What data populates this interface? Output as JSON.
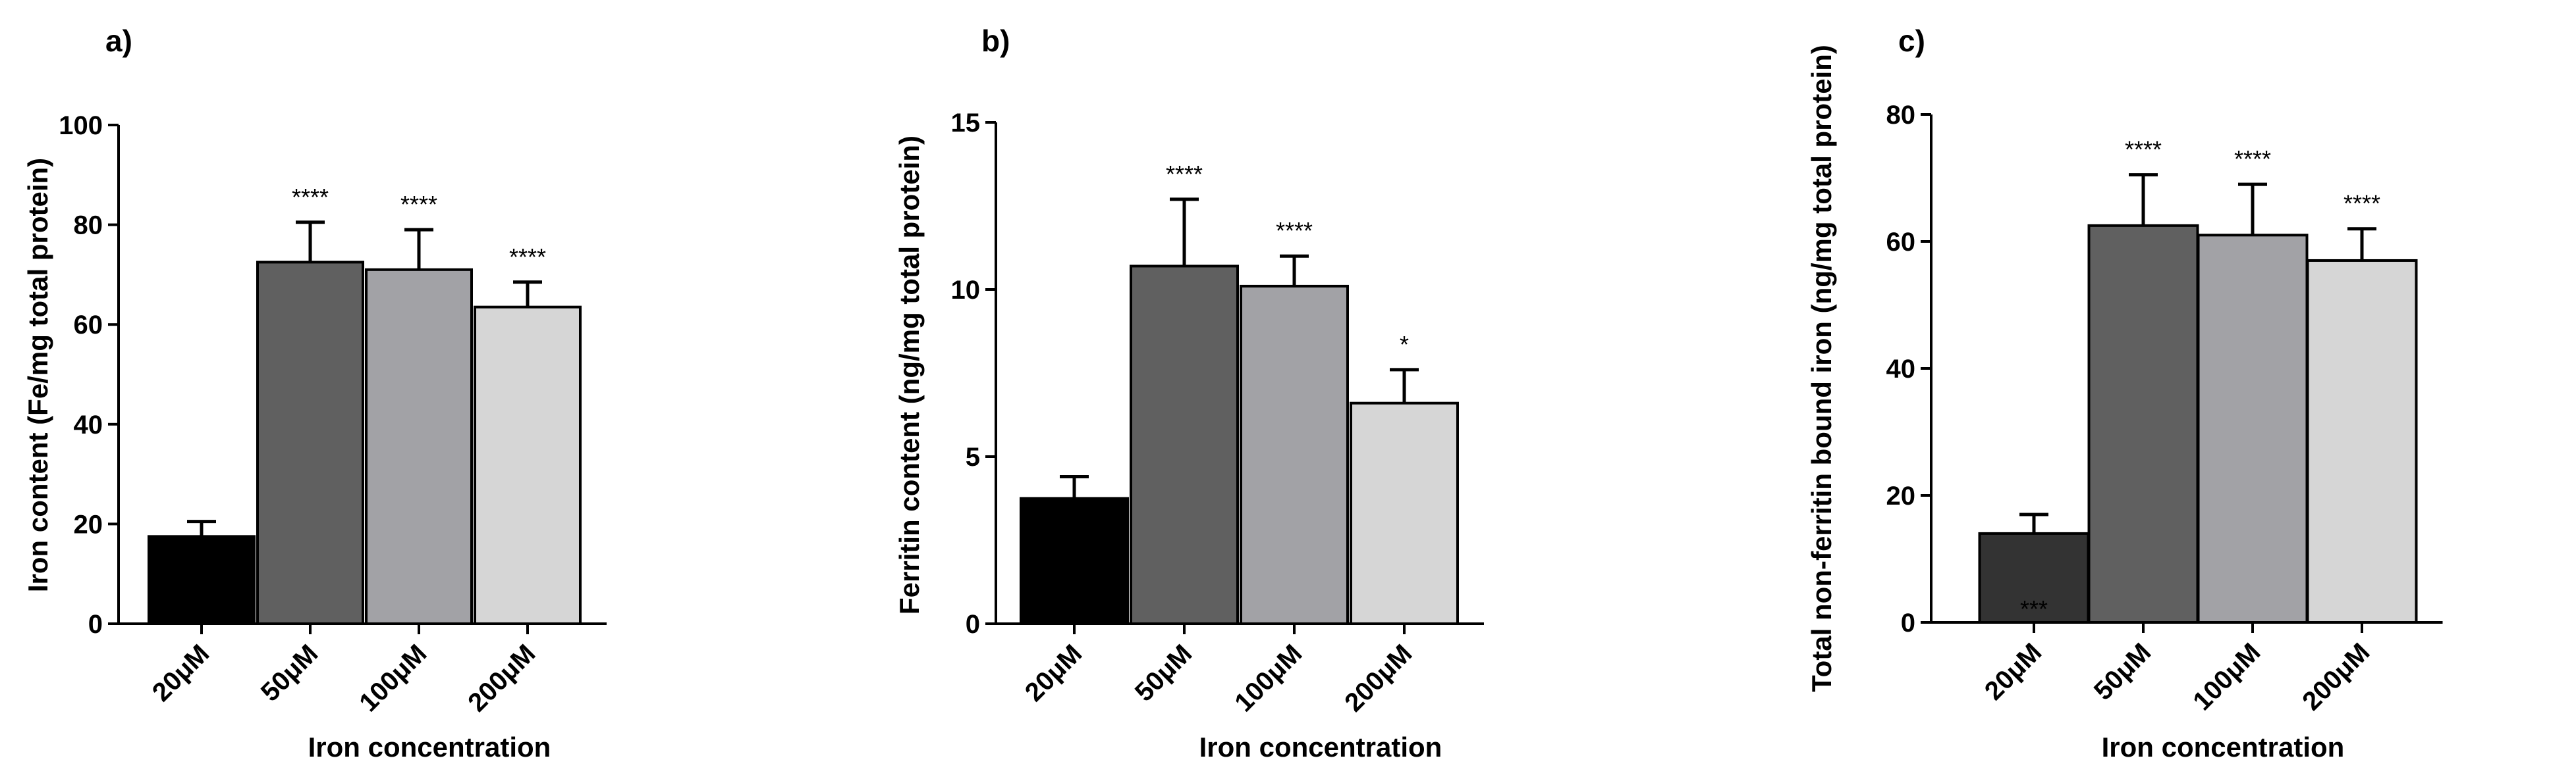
{
  "chart_data": [
    {
      "type": "bar",
      "panel_label": "a)",
      "categories": [
        "20μM",
        "50μM",
        "100μM",
        "200μM"
      ],
      "values": [
        17.5,
        72.5,
        71,
        63.5
      ],
      "errors": [
        3,
        8,
        8,
        5
      ],
      "significance": [
        "",
        "****",
        "****",
        "****"
      ],
      "bar_colors": [
        "#000000",
        "#606060",
        "#a2a2a6",
        "#d6d6d6"
      ],
      "ylabel": "Iron content (Fe/mg total protein)",
      "xlabel": "Iron concentration",
      "ylim": [
        0,
        100
      ],
      "yticks": [
        "0",
        "20",
        "40",
        "60",
        "80",
        "100"
      ]
    },
    {
      "type": "bar",
      "panel_label": "b)",
      "categories": [
        "20μM",
        "50μM",
        "100μM",
        "200μM"
      ],
      "values": [
        3.75,
        10.7,
        10.1,
        6.6
      ],
      "errors": [
        0.65,
        2.0,
        0.9,
        1.0
      ],
      "significance": [
        "",
        "****",
        "****",
        "*"
      ],
      "bar_colors": [
        "#000000",
        "#606060",
        "#a2a2a6",
        "#d6d6d6"
      ],
      "ylabel": "Ferritin content (ng/mg total protein)",
      "xlabel": "Iron concentration",
      "ylim": [
        0,
        15
      ],
      "yticks": [
        "0",
        "5",
        "10",
        "15"
      ]
    },
    {
      "type": "bar",
      "panel_label": "c)",
      "categories": [
        "20μM",
        "50μM",
        "100μM",
        "200μM"
      ],
      "values": [
        14,
        62.5,
        61,
        57
      ],
      "errors": [
        3,
        8,
        8,
        5
      ],
      "significance": [
        "***",
        "****",
        "****",
        "****"
      ],
      "bar_colors": [
        "#333333",
        "#606060",
        "#a2a2a6",
        "#d6d6d6"
      ],
      "ylabel": "Total non-ferritin bound iron (ng/mg total protein)",
      "xlabel": "Iron concentration",
      "ylim": [
        0,
        80
      ],
      "yticks": [
        "0",
        "20",
        "40",
        "60",
        "80"
      ]
    }
  ]
}
